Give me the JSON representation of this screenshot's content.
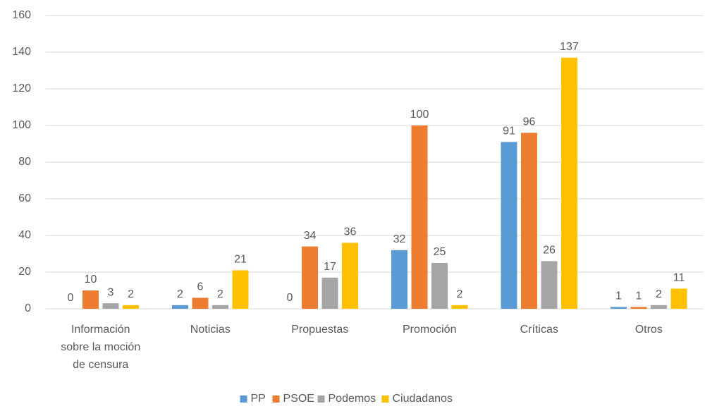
{
  "chart_data": {
    "type": "bar",
    "categories": [
      "Información sobre la moción de censura",
      "Noticias",
      "Propuestas",
      "Promoción",
      "Críticas",
      "Otros"
    ],
    "series": [
      {
        "name": "PP",
        "color": "#5b9bd5",
        "values": [
          0,
          2,
          0,
          32,
          91,
          1
        ]
      },
      {
        "name": "PSOE",
        "color": "#ed7d31",
        "values": [
          10,
          6,
          34,
          100,
          96,
          1
        ]
      },
      {
        "name": "Podemos",
        "color": "#a5a5a5",
        "values": [
          3,
          2,
          17,
          25,
          26,
          2
        ]
      },
      {
        "name": "Ciudadanos",
        "color": "#ffc000",
        "values": [
          2,
          21,
          36,
          2,
          137,
          11
        ]
      }
    ],
    "ylim": [
      0,
      160
    ],
    "yticks": [
      0,
      20,
      40,
      60,
      80,
      100,
      120,
      140,
      160
    ],
    "grid": true,
    "legend": "bottom"
  }
}
